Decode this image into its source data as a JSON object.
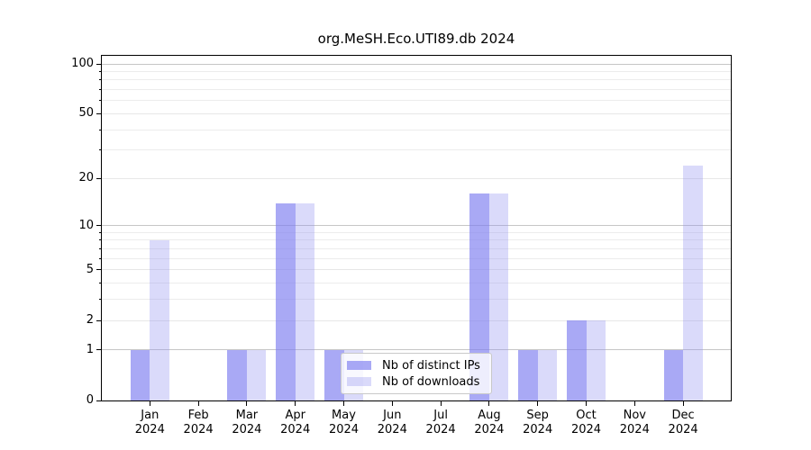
{
  "chart_data": {
    "type": "bar",
    "title": "org.MeSH.Eco.UTI89.db 2024",
    "categories": [
      "Jan 2024",
      "Feb 2024",
      "Mar 2024",
      "Apr 2024",
      "May 2024",
      "Jun 2024",
      "Jul 2024",
      "Aug 2024",
      "Sep 2024",
      "Oct 2024",
      "Nov 2024",
      "Dec 2024"
    ],
    "series": [
      {
        "name": "Nb of distinct IPs",
        "color": "rgba(124,124,240,0.66)",
        "values": [
          1,
          0,
          1,
          14,
          1,
          0,
          0,
          16,
          1,
          2,
          0,
          1
        ]
      },
      {
        "name": "Nb of downloads",
        "color": "rgba(148,148,240,0.34)",
        "values": [
          8,
          0,
          1,
          14,
          1,
          0,
          0,
          16,
          1,
          2,
          0,
          24
        ]
      }
    ],
    "yscale": "log10(1+y)",
    "ylim": [
      0,
      100
    ],
    "yticks": [
      0,
      1,
      2,
      5,
      10,
      20,
      50,
      100
    ],
    "yticks_minor": [
      3,
      4,
      6,
      7,
      8,
      9,
      30,
      40,
      60,
      70,
      80,
      90
    ],
    "grid": true,
    "major_grid_at": [
      1,
      10,
      100
    ],
    "legend_position": "inside-bottom-center",
    "colors": {
      "major_grid": "#c6c6c6",
      "minor_grid": "#ececec",
      "axis": "#000000",
      "background": "#ffffff"
    }
  }
}
